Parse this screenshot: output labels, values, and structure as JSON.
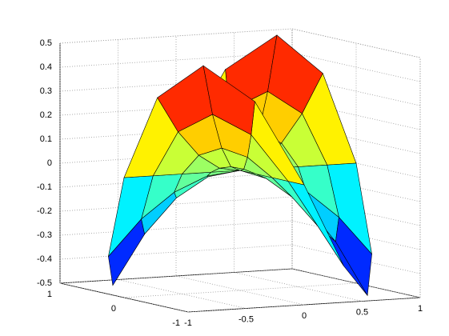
{
  "chart_data": {
    "type": "surface",
    "colormap": "jet",
    "grid": true,
    "r": [
      0,
      0.25,
      0.5,
      0.75,
      1
    ],
    "theta": [
      0,
      22.5,
      45,
      67.5,
      90,
      112.5,
      135,
      157.5,
      180,
      202.5,
      225,
      247.5,
      270,
      292.5,
      315,
      337.5,
      360
    ],
    "z": [
      [
        0,
        0,
        0,
        0,
        0,
        0,
        0,
        0,
        0,
        0,
        0,
        0,
        0,
        0,
        0,
        0,
        0
      ],
      [
        0,
        0.0221,
        0.03125,
        0.0221,
        0,
        -0.0221,
        -0.03125,
        -0.0221,
        0,
        0.0221,
        0.03125,
        0.0221,
        0,
        -0.0221,
        -0.03125,
        -0.0221,
        0
      ],
      [
        0,
        0.0884,
        0.125,
        0.0884,
        0,
        -0.0884,
        -0.125,
        -0.0884,
        0,
        0.0884,
        0.125,
        0.0884,
        0,
        -0.0884,
        -0.125,
        -0.0884,
        0
      ],
      [
        0,
        0.1989,
        0.28125,
        0.1989,
        0,
        -0.1989,
        -0.28125,
        -0.1989,
        0,
        0.1989,
        0.28125,
        0.1989,
        0,
        -0.1989,
        -0.28125,
        -0.1989,
        0
      ],
      [
        0,
        0.3536,
        0.5,
        0.3536,
        0,
        -0.3536,
        -0.5,
        -0.3536,
        0,
        0.3536,
        0.5,
        0.3536,
        0,
        -0.3536,
        -0.5,
        -0.3536,
        0
      ]
    ],
    "xlim": [
      -1,
      1
    ],
    "ylim": [
      -1,
      1
    ],
    "zlim": [
      -0.5,
      0.5
    ],
    "xticks": [
      -1,
      -0.5,
      0,
      0.5,
      1
    ],
    "yticks": [
      -1,
      0,
      1
    ],
    "zticks": [
      -0.5,
      -0.4,
      -0.3,
      -0.2,
      -0.1,
      0,
      0.1,
      0.2,
      0.3,
      0.4,
      0.5
    ]
  }
}
